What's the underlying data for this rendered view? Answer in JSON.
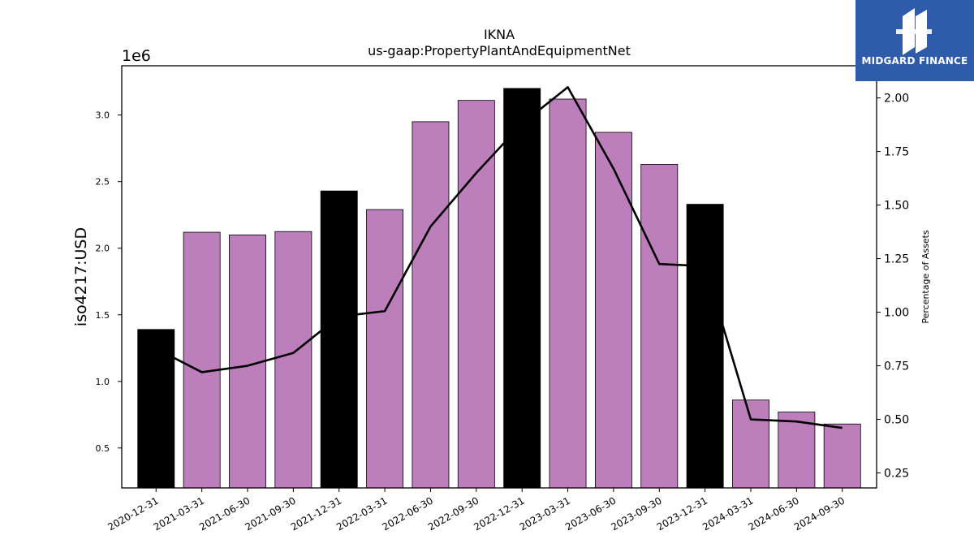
{
  "chart_data": {
    "type": "bar",
    "title": "IKNA",
    "subtitle": "us-gaap:PropertyPlantAndEquipmentNet",
    "ylabel": "iso4217:USD",
    "y_offset_label": "1e6",
    "y2label": "Percentage of Assets",
    "categories": [
      "2020-12-31",
      "2021-03-31",
      "2021-06-30",
      "2021-09-30",
      "2021-12-31",
      "2022-03-31",
      "2022-06-30",
      "2022-09-30",
      "2022-12-31",
      "2023-03-31",
      "2023-06-30",
      "2023-09-30",
      "2023-12-31",
      "2024-03-31",
      "2024-06-30",
      "2024-09-30"
    ],
    "values": [
      1.39,
      2.12,
      2.1,
      2.125,
      2.43,
      2.29,
      2.95,
      3.11,
      3.2,
      3.12,
      2.87,
      2.63,
      2.33,
      0.86,
      0.77,
      0.68
    ],
    "annual_flags": [
      true,
      false,
      false,
      false,
      true,
      false,
      false,
      false,
      true,
      false,
      false,
      false,
      true,
      false,
      false,
      false
    ],
    "line": {
      "name": "Percentage of Assets",
      "values": [
        0.83,
        0.72,
        0.75,
        0.81,
        0.98,
        1.005,
        1.4,
        1.65,
        1.88,
        2.05,
        1.67,
        1.225,
        1.215,
        0.5,
        0.49,
        0.46
      ]
    },
    "ylim": [
      0.2,
      3.37
    ],
    "y_ticks": [
      0.5,
      1.0,
      1.5,
      2.0,
      2.5,
      3.0
    ],
    "y_tick_labels": [
      "0.5",
      "1.0",
      "1.5",
      "2.0",
      "2.5",
      "3.0"
    ],
    "y2lim": [
      0.18,
      2.15
    ],
    "y2_ticks": [
      0.25,
      0.5,
      0.75,
      1.0,
      1.25,
      1.5,
      1.75,
      2.0
    ],
    "y2_tick_labels": [
      "0.25",
      "0.50",
      "0.75",
      "1.00",
      "1.25",
      "1.50",
      "1.75",
      "2.00"
    ],
    "grid": false,
    "colors": {
      "quarterly_bar": "#bc7fbc",
      "annual_bar": "#000000",
      "line": "#000000"
    }
  },
  "logo": {
    "text": "MIDGARD FINANCE",
    "background": "#2f5caa"
  }
}
